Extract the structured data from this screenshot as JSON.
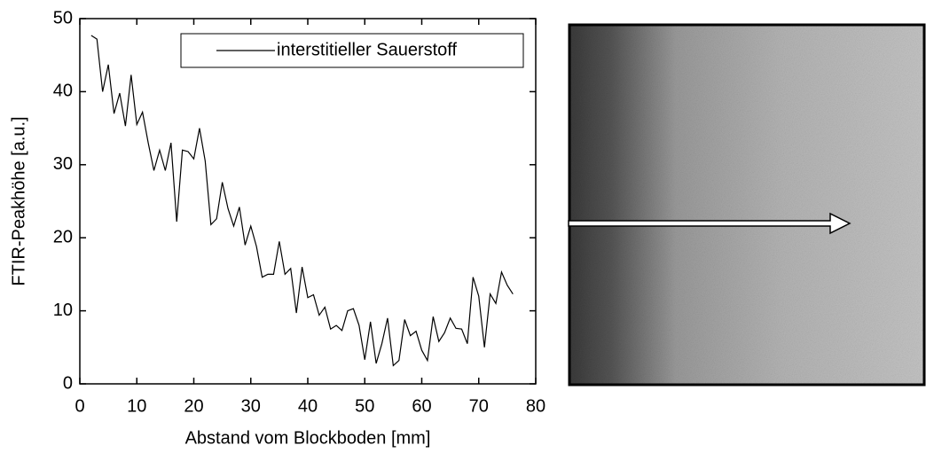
{
  "chart_data": {
    "type": "line",
    "xlabel": "Abstand vom Blockboden [mm]",
    "ylabel": "FTIR-Peakhöhe [a.u.]",
    "x": [
      2,
      3,
      4,
      5,
      6,
      7,
      8,
      9,
      10,
      11,
      12,
      13,
      14,
      15,
      16,
      17,
      18,
      19,
      20,
      21,
      22,
      23,
      24,
      25,
      26,
      27,
      28,
      29,
      30,
      31,
      32,
      33,
      34,
      35,
      36,
      37,
      38,
      39,
      40,
      41,
      42,
      43,
      44,
      45,
      46,
      47,
      48,
      49,
      50,
      51,
      52,
      53,
      54,
      55,
      56,
      57,
      58,
      59,
      60,
      61,
      62,
      63,
      64,
      65,
      66,
      67,
      68,
      69,
      70,
      71,
      72,
      73,
      74,
      75,
      76
    ],
    "series": [
      {
        "name": "interstitieller Sauerstoff",
        "color": "#000000",
        "values": [
          47.7,
          47.2,
          40,
          43.7,
          37,
          39.8,
          35.3,
          42.3,
          35.5,
          37.2,
          33,
          29.2,
          32,
          29.2,
          33,
          22.2,
          32,
          31.8,
          30.8,
          35,
          30.5,
          21.8,
          22.6,
          27.6,
          24,
          21.6,
          24.2,
          19,
          21.6,
          18.8,
          14.6,
          15,
          15,
          19.5,
          15,
          15.8,
          9.7,
          16,
          11.8,
          12.2,
          9.4,
          10.5,
          7.5,
          8,
          7.3,
          10,
          10.3,
          8,
          3.3,
          8.5,
          2.8,
          5.5,
          9,
          2.5,
          3.2,
          8.8,
          6.6,
          7.2,
          4.6,
          3.2,
          9.2,
          5.8,
          7,
          9,
          7.6,
          7.5,
          5.5,
          14.6,
          12,
          5,
          12.3,
          11,
          15.3,
          13.5,
          12.3
        ]
      }
    ],
    "xlim": [
      0,
      80
    ],
    "xticks": [
      0,
      10,
      20,
      30,
      40,
      50,
      60,
      70,
      80
    ],
    "ylim": [
      0,
      50
    ],
    "yticks": [
      0,
      10,
      20,
      30,
      40,
      50
    ],
    "legend": "upper right"
  }
}
